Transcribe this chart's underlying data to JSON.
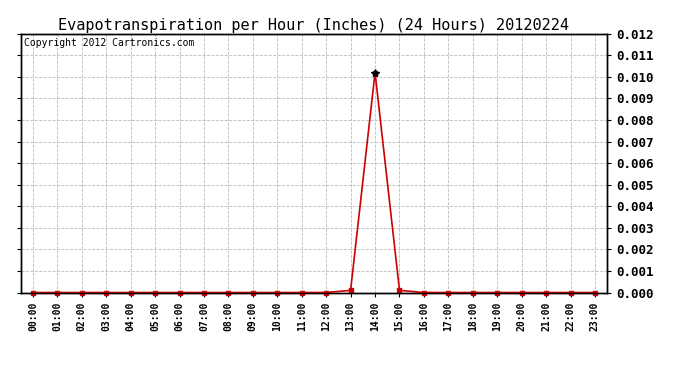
{
  "title": "Evapotranspiration per Hour (Inches) (24 Hours) 20120224",
  "copyright": "Copyright 2012 Cartronics.com",
  "hours": [
    0,
    1,
    2,
    3,
    4,
    5,
    6,
    7,
    8,
    9,
    10,
    11,
    12,
    13,
    14,
    15,
    16,
    17,
    18,
    19,
    20,
    21,
    22,
    23
  ],
  "values": [
    0.0,
    0.0,
    0.0,
    0.0,
    0.0,
    0.0,
    0.0,
    0.0,
    0.0,
    0.0,
    0.0,
    0.0,
    0.0,
    0.0001,
    0.0102,
    0.0001,
    0.0,
    0.0,
    0.0,
    0.0,
    0.0,
    0.0,
    0.0,
    0.0
  ],
  "line_color": "#cc0000",
  "marker": "s",
  "marker_size": 3,
  "marker_color": "#cc0000",
  "peak_marker": "*",
  "peak_marker_size": 6,
  "ylim": [
    0.0,
    0.012
  ],
  "yticks": [
    0.0,
    0.001,
    0.002,
    0.003,
    0.004,
    0.005,
    0.006,
    0.007,
    0.008,
    0.009,
    0.01,
    0.011,
    0.012
  ],
  "background_color": "#ffffff",
  "plot_bg_color": "#ffffff",
  "grid_color": "#bbbbbb",
  "title_fontsize": 11,
  "copyright_fontsize": 7,
  "tick_fontsize": 7,
  "ytick_fontsize": 9
}
